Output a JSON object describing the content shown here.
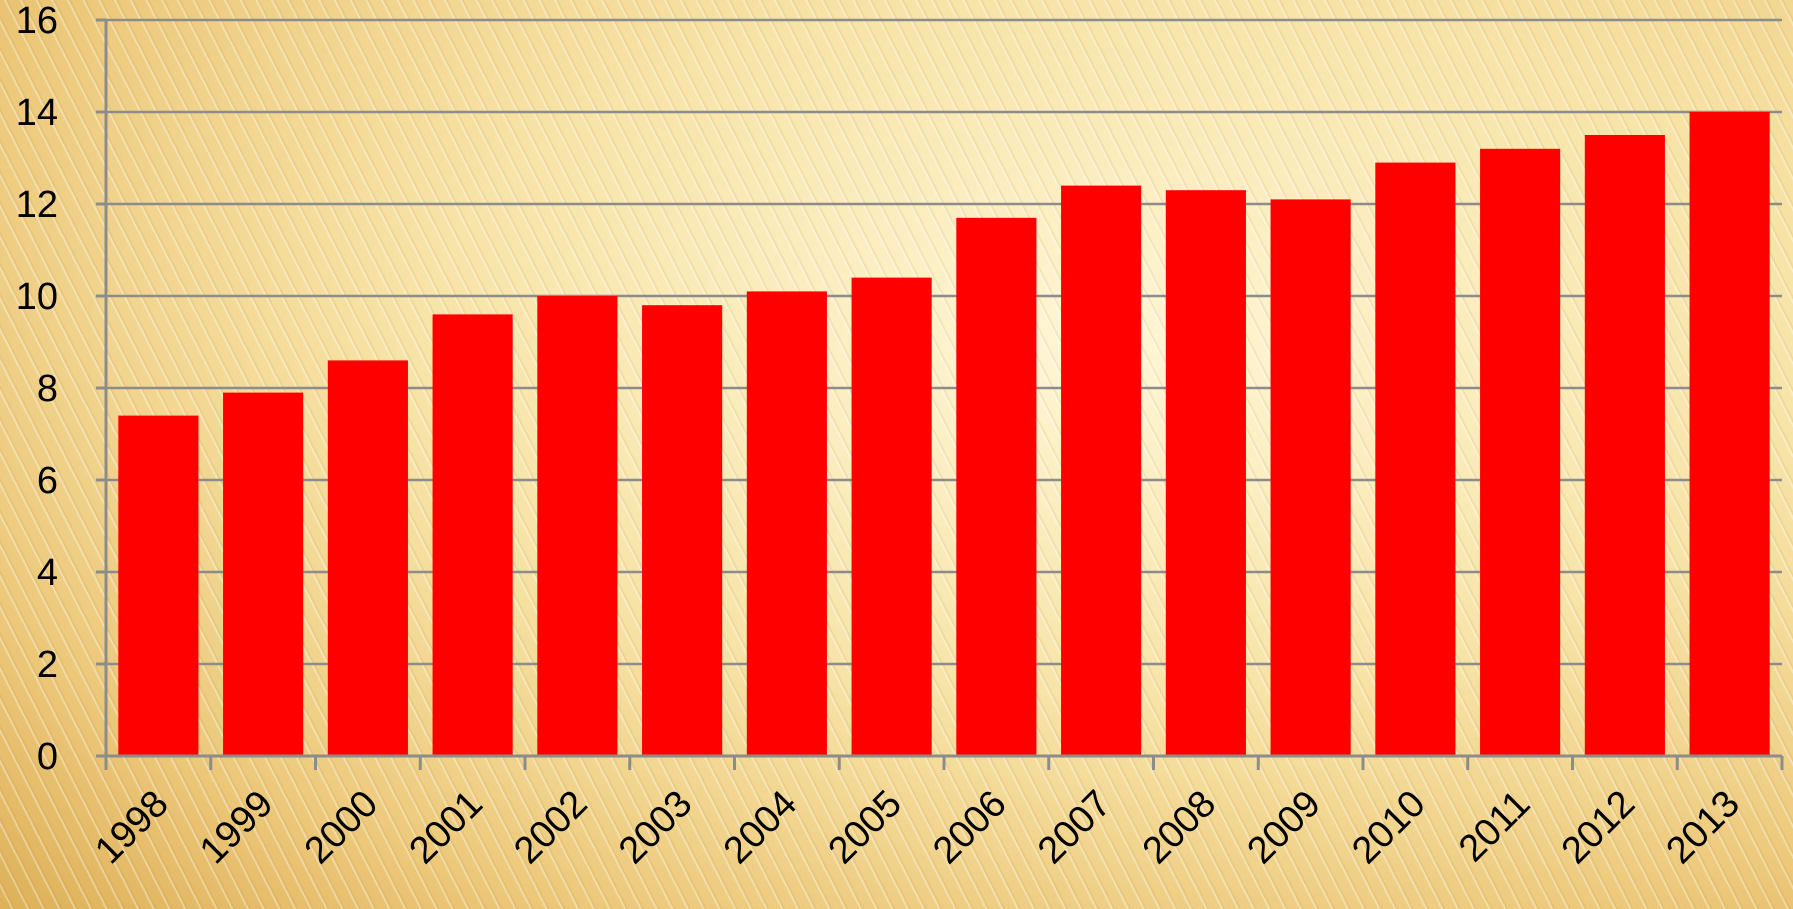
{
  "chart_data": {
    "type": "bar",
    "categories": [
      "1998",
      "1999",
      "2000",
      "2001",
      "2002",
      "2003",
      "2004",
      "2005",
      "2006",
      "2007",
      "2008",
      "2009",
      "2010",
      "2011",
      "2012",
      "2013"
    ],
    "series": [
      {
        "values": [
          7.4,
          7.9,
          8.6,
          9.6,
          10.0,
          9.8,
          10.1,
          10.4,
          11.7,
          12.4,
          12.3,
          12.1,
          12.9,
          13.2,
          13.5,
          14.0
        ]
      }
    ],
    "title": "",
    "xlabel": "",
    "ylabel": "",
    "ylim": [
      0,
      16
    ],
    "yticks": [
      "0",
      "2",
      "4",
      "6",
      "8",
      "10",
      "12",
      "14",
      "16"
    ],
    "grid": true,
    "legend": "none",
    "colors": {
      "bar": "#ff0000",
      "gridline": "#8c8c8c",
      "axis": "#8c8c8c",
      "text": "#000000"
    }
  }
}
